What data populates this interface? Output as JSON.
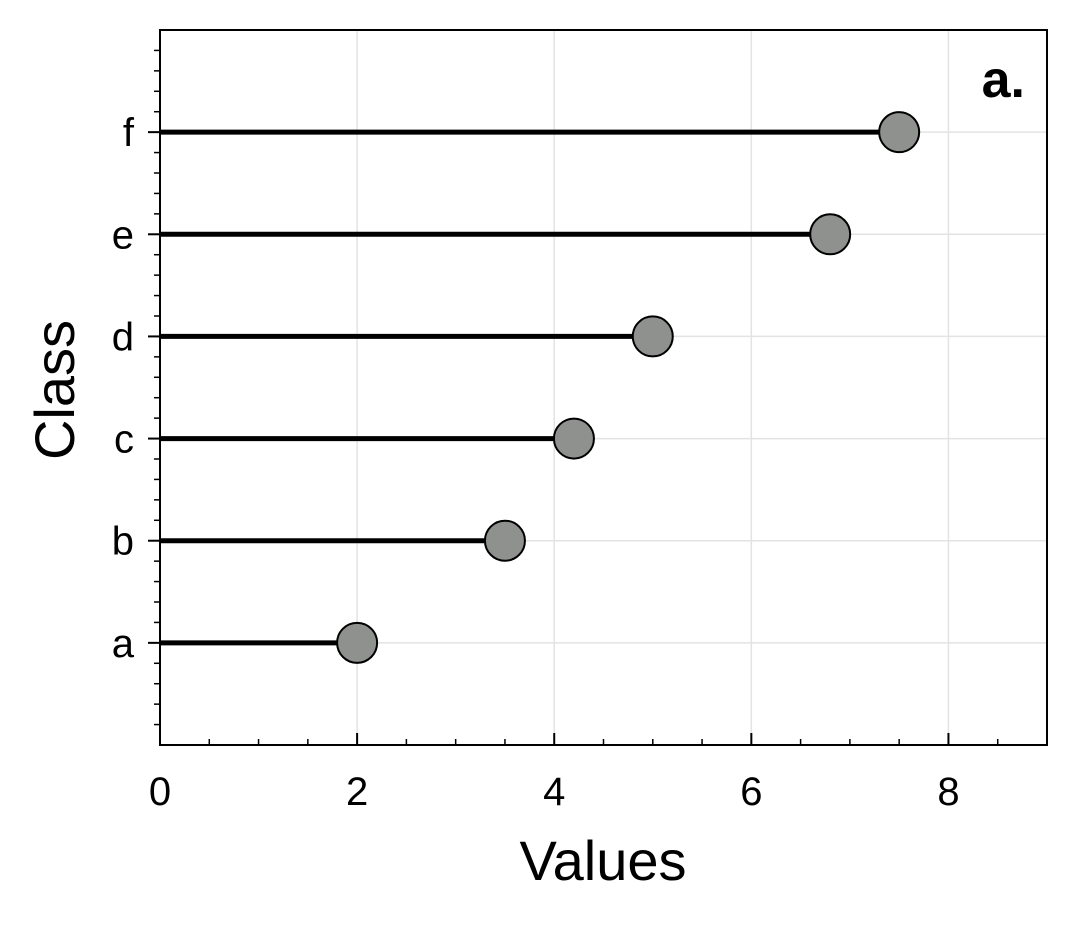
{
  "chart_data": {
    "type": "lollipop",
    "orientation": "horizontal",
    "panel_label": "a.",
    "xlabel": "Values",
    "ylabel": "Class",
    "categories": [
      "a",
      "b",
      "c",
      "d",
      "e",
      "f"
    ],
    "values": [
      2.0,
      3.5,
      4.2,
      5.0,
      6.8,
      7.5
    ],
    "xlim": [
      0,
      9
    ],
    "xticks": [
      0,
      2,
      4,
      6,
      8
    ],
    "ylim": [
      -1,
      6
    ],
    "grid": true,
    "colors": {
      "stem": "#000000",
      "marker_fill": "#8f918e",
      "marker_edge": "#000000",
      "grid": "#e3e3e3"
    }
  }
}
